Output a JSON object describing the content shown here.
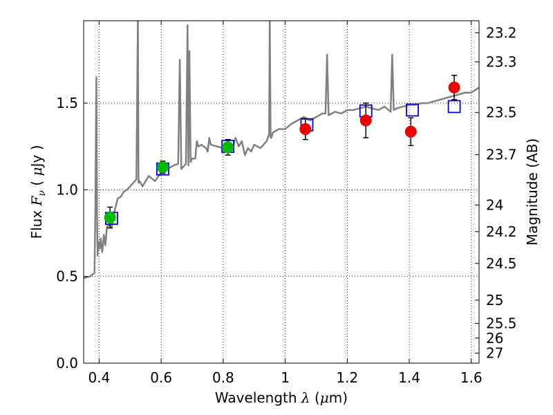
{
  "chart_data": {
    "type": "scatter",
    "xlabel": {
      "prefix": "Wavelength  ",
      "symbol": "λ",
      "suffix": " (",
      "unit_symbol": "μ",
      "unit": "m)"
    },
    "ylabel": {
      "prefix": "Flux  ",
      "symbol": "F",
      "subscript": "ν",
      "suffix": "  ( ",
      "unit_symbol": "μ",
      "unit": "Jy )"
    },
    "y2label": "Magnitude (AB)",
    "xlim": [
      0.35,
      1.625
    ],
    "ylim": [
      0.0,
      1.975
    ],
    "x_ticks": [
      0.4,
      0.6,
      0.8,
      1.0,
      1.2,
      1.4,
      1.6
    ],
    "x_tick_labels": [
      "0.4",
      "0.6",
      "0.8",
      "1",
      "1.2",
      "1.4",
      "1.6"
    ],
    "y_ticks": [
      0.0,
      0.5,
      1.0,
      1.5
    ],
    "y_tick_labels": [
      "0.0",
      "0.5",
      "1.0",
      "1.5"
    ],
    "mag_ticks": [
      {
        "label": "23.2",
        "mag": 23.2
      },
      {
        "label": "23.3",
        "mag": 23.3
      },
      {
        "label": "23.5",
        "mag": 23.5
      },
      {
        "label": "23.7",
        "mag": 23.7
      },
      {
        "label": "24",
        "mag": 24.0
      },
      {
        "label": "24.2",
        "mag": 24.2
      },
      {
        "label": "24.5",
        "mag": 24.5
      },
      {
        "label": "25",
        "mag": 25.0
      },
      {
        "label": "25.5",
        "mag": 25.5
      },
      {
        "label": "26",
        "mag": 26.0
      },
      {
        "label": "27",
        "mag": 27.0
      }
    ],
    "grid": "dotted",
    "colors": {
      "model": "#808080",
      "optical": "#00bb00",
      "nir": "#ee0000",
      "model_phot": "#0000dd",
      "error": "#000000"
    },
    "model_spectrum": {
      "x": [
        0.35,
        0.37,
        0.385,
        0.388,
        0.391,
        0.393,
        0.395,
        0.398,
        0.402,
        0.405,
        0.41,
        0.415,
        0.42,
        0.425,
        0.43,
        0.44,
        0.45,
        0.46,
        0.47,
        0.48,
        0.49,
        0.5,
        0.51,
        0.52,
        0.525,
        0.527,
        0.53,
        0.54,
        0.56,
        0.58,
        0.6,
        0.62,
        0.64,
        0.655,
        0.66,
        0.665,
        0.68,
        0.685,
        0.688,
        0.691,
        0.695,
        0.7,
        0.71,
        0.715,
        0.72,
        0.73,
        0.745,
        0.75,
        0.755,
        0.76,
        0.78,
        0.8,
        0.81,
        0.82,
        0.83,
        0.84,
        0.85,
        0.86,
        0.87,
        0.88,
        0.89,
        0.9,
        0.92,
        0.94,
        0.948,
        0.95,
        0.953,
        0.955,
        0.96,
        0.98,
        1.0,
        1.02,
        1.04,
        1.06,
        1.08,
        1.1,
        1.12,
        1.13,
        1.135,
        1.14,
        1.16,
        1.18,
        1.2,
        1.22,
        1.24,
        1.26,
        1.28,
        1.3,
        1.32,
        1.34,
        1.345,
        1.35,
        1.36,
        1.38,
        1.4,
        1.42,
        1.44,
        1.46,
        1.48,
        1.5,
        1.52,
        1.54,
        1.56,
        1.58,
        1.6,
        1.625
      ],
      "y": [
        0.49,
        0.5,
        0.52,
        0.9,
        1.65,
        0.88,
        0.62,
        0.7,
        0.66,
        0.72,
        0.64,
        0.74,
        0.68,
        0.78,
        0.8,
        0.78,
        0.88,
        0.95,
        0.96,
        0.99,
        1.0,
        1.02,
        1.04,
        1.06,
        2.0,
        1.04,
        1.05,
        1.02,
        1.08,
        1.05,
        1.1,
        1.12,
        1.14,
        1.15,
        1.75,
        1.12,
        1.15,
        1.95,
        1.14,
        1.8,
        1.16,
        1.18,
        1.18,
        1.28,
        1.25,
        1.26,
        1.24,
        1.22,
        1.3,
        1.26,
        1.25,
        1.24,
        1.22,
        1.26,
        1.24,
        1.3,
        1.25,
        1.28,
        1.2,
        1.24,
        1.22,
        1.26,
        1.24,
        1.28,
        1.32,
        2.0,
        1.3,
        1.3,
        1.33,
        1.35,
        1.35,
        1.38,
        1.4,
        1.42,
        1.4,
        1.42,
        1.44,
        1.44,
        1.78,
        1.43,
        1.45,
        1.44,
        1.46,
        1.46,
        1.47,
        1.48,
        1.47,
        1.46,
        1.48,
        1.45,
        1.78,
        1.46,
        1.47,
        1.48,
        1.49,
        1.49,
        1.5,
        1.5,
        1.51,
        1.52,
        1.53,
        1.54,
        1.55,
        1.56,
        1.56,
        1.59
      ]
    },
    "model_photometry": [
      {
        "x": 0.44,
        "y": 0.835
      },
      {
        "x": 0.605,
        "y": 1.12
      },
      {
        "x": 0.815,
        "y": 1.25
      },
      {
        "x": 1.07,
        "y": 1.375
      },
      {
        "x": 1.26,
        "y": 1.455
      },
      {
        "x": 1.41,
        "y": 1.46
      },
      {
        "x": 1.545,
        "y": 1.48
      }
    ],
    "observed": [
      {
        "band": "optical",
        "x": 0.435,
        "y": 0.84,
        "err": 0.06
      },
      {
        "band": "optical",
        "x": 0.605,
        "y": 1.13,
        "err": 0.035
      },
      {
        "band": "optical",
        "x": 0.815,
        "y": 1.245,
        "err": 0.045
      },
      {
        "band": "nir",
        "x": 1.065,
        "y": 1.35,
        "err": 0.06
      },
      {
        "band": "nir",
        "x": 1.26,
        "y": 1.4,
        "err": 0.1
      },
      {
        "band": "nir",
        "x": 1.405,
        "y": 1.335,
        "err": 0.08
      },
      {
        "band": "nir",
        "x": 1.545,
        "y": 1.59,
        "err": 0.07
      }
    ]
  }
}
